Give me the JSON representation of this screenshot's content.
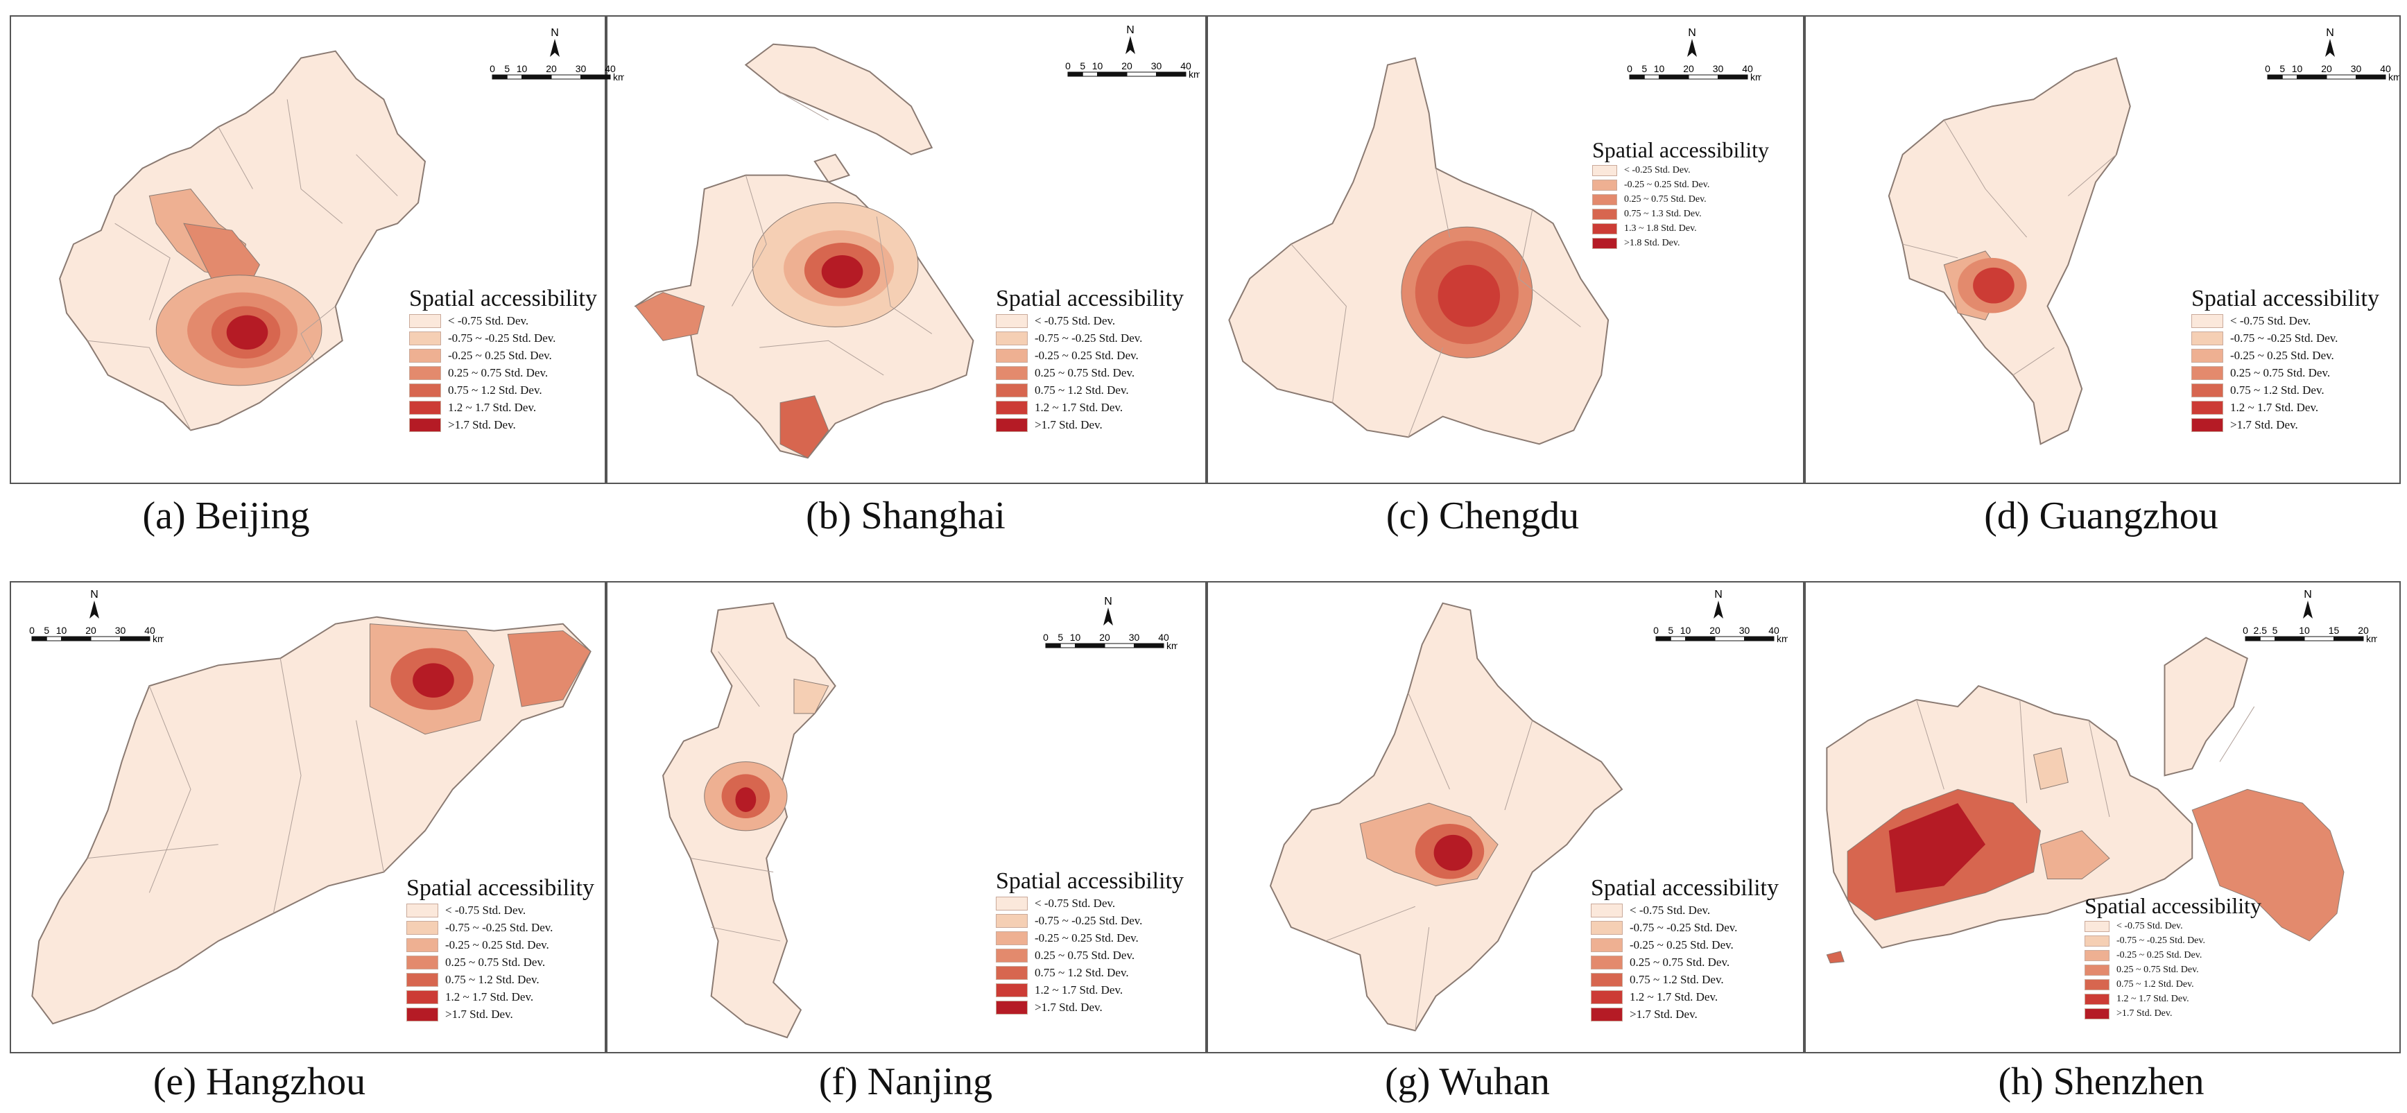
{
  "legend": {
    "title": "Spatial accessibility",
    "classes": [
      "< -0.75 Std. Dev.",
      "-0.75 ~ -0.25 Std. Dev.",
      "-0.25 ~ 0.25 Std. Dev.",
      "0.25 ~ 0.75 Std. Dev.",
      "0.75 ~ 1.2 Std. Dev.",
      "1.2 ~ 1.7 Std. Dev.",
      ">1.7 Std. Dev."
    ],
    "classes_chengdu": [
      "< -0.25 Std. Dev.",
      "-0.25 ~ 0.25 Std. Dev.",
      "0.25 ~ 0.75 Std. Dev.",
      "0.75 ~ 1.3 Std. Dev.",
      "1.3 ~ 1.8 Std. Dev.",
      ">1.8 Std. Dev."
    ],
    "colors": [
      "#fbe8db",
      "#f5cfb4",
      "#eeb092",
      "#e38a6d",
      "#d7664f",
      "#cc3c35",
      "#b51b25"
    ]
  },
  "north_label": "N",
  "scale_km_unit": "km",
  "scale_ticks_default": [
    "0",
    "5",
    "10",
    "20",
    "30",
    "40"
  ],
  "scale_ticks_shenzhen": [
    "0",
    "2.5",
    "5",
    "10",
    "15",
    "20"
  ],
  "panels": [
    {
      "id": "a",
      "caption": "(a) Beijing"
    },
    {
      "id": "b",
      "caption": "(b) Shanghai"
    },
    {
      "id": "c",
      "caption": "(c) Chengdu"
    },
    {
      "id": "d",
      "caption": "(d) Guangzhou"
    },
    {
      "id": "e",
      "caption": "(e) Hangzhou"
    },
    {
      "id": "f",
      "caption": "(f) Nanjing"
    },
    {
      "id": "g",
      "caption": "(g) Wuhan"
    },
    {
      "id": "h",
      "caption": "(h) Shenzhen"
    }
  ]
}
